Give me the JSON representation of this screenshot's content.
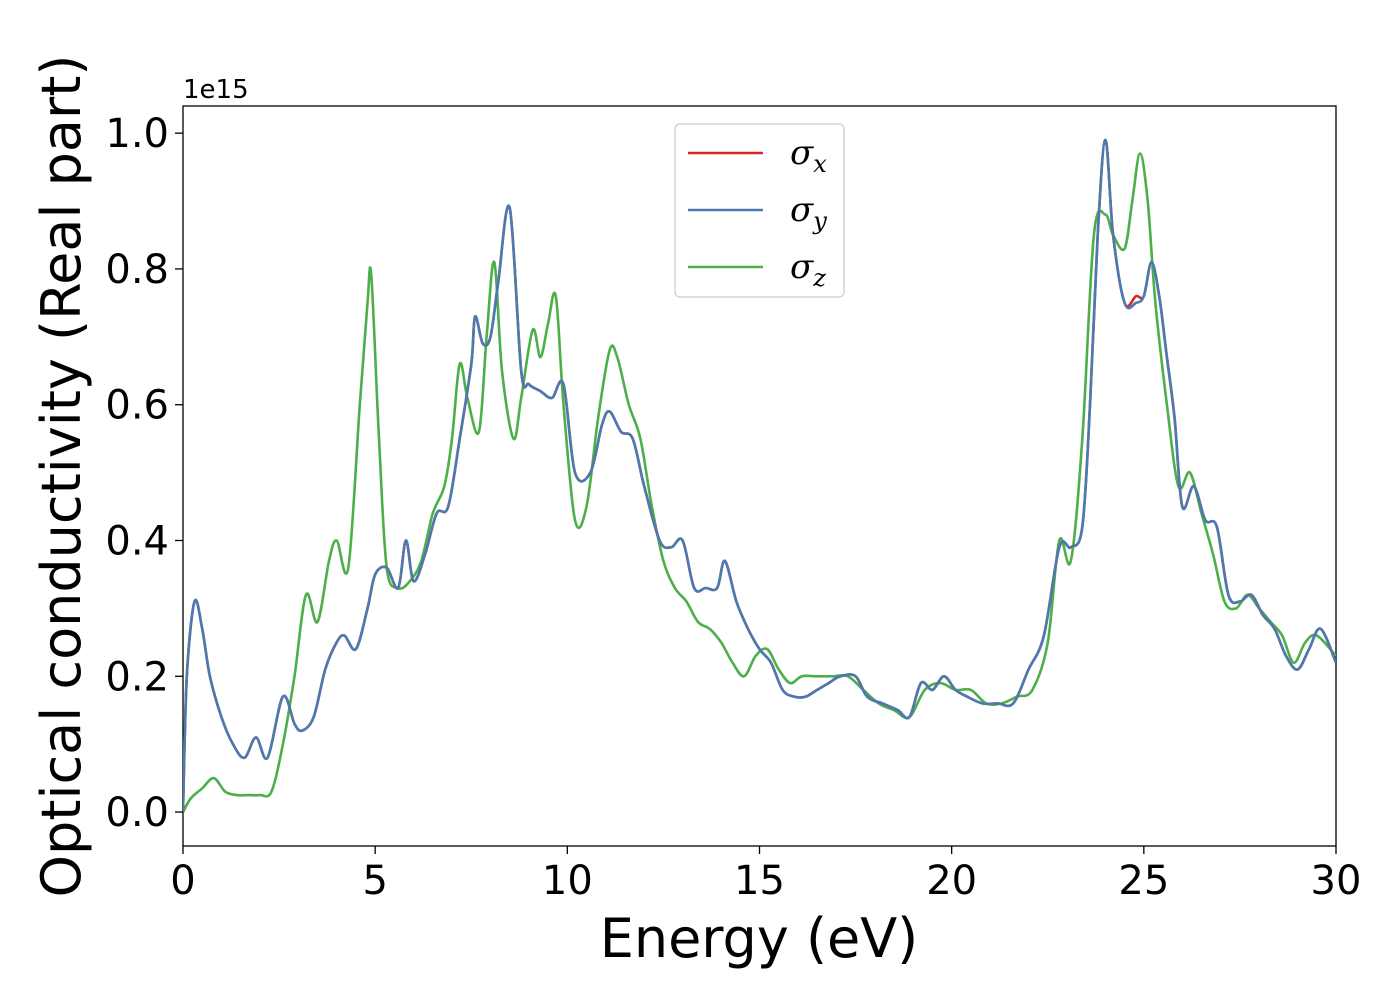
{
  "chart_data": {
    "type": "line",
    "xlabel": "Energy (eV)",
    "ylabel": "Optical conductivity (Real part)",
    "y_offset_label": "1e15",
    "xlim": [
      0,
      30
    ],
    "ylim": [
      -0.05,
      1.04
    ],
    "xticks": [
      0,
      5,
      10,
      15,
      20,
      25,
      30
    ],
    "xtick_labels": [
      "0",
      "5",
      "10",
      "15",
      "20",
      "25",
      "30"
    ],
    "yticks": [
      0.0,
      0.2,
      0.4,
      0.6,
      0.8,
      1.0
    ],
    "ytick_labels": [
      "0.0",
      "0.2",
      "0.4",
      "0.6",
      "0.8",
      "1.0"
    ],
    "grid": false,
    "legend_position": "top-center",
    "series": [
      {
        "name": "σx",
        "symbol": "σ",
        "subscript": "x",
        "color": "#d62728",
        "x": [
          0,
          0.1,
          0.3,
          0.5,
          0.7,
          1.0,
          1.3,
          1.6,
          1.9,
          2.2,
          2.6,
          2.9,
          3.1,
          3.4,
          3.7,
          4.0,
          4.2,
          4.5,
          4.8,
          5.0,
          5.3,
          5.6,
          5.8,
          6.0,
          6.3,
          6.6,
          6.9,
          7.2,
          7.5,
          7.6,
          7.8,
          8.0,
          8.2,
          8.5,
          8.8,
          9.0,
          9.3,
          9.6,
          9.9,
          10.2,
          10.6,
          10.9,
          11.1,
          11.4,
          11.7,
          12.0,
          12.4,
          12.7,
          13.0,
          13.3,
          13.6,
          13.9,
          14.1,
          14.4,
          14.7,
          15.0,
          15.3,
          15.6,
          15.9,
          16.2,
          16.5,
          16.8,
          17.1,
          17.5,
          17.8,
          18.2,
          18.6,
          18.9,
          19.2,
          19.5,
          19.8,
          20.1,
          20.4,
          20.8,
          21.2,
          21.6,
          22.0,
          22.4,
          22.8,
          23.1,
          23.4,
          23.6,
          23.8,
          24.0,
          24.2,
          24.5,
          24.8,
          25.0,
          25.2,
          25.4,
          25.6,
          25.8,
          26.0,
          26.3,
          26.6,
          26.9,
          27.2,
          27.5,
          27.8,
          28.1,
          28.4,
          28.7,
          29.0,
          29.3,
          29.6,
          30.0
        ],
        "y": [
          0.0,
          0.2,
          0.31,
          0.27,
          0.2,
          0.14,
          0.1,
          0.08,
          0.11,
          0.08,
          0.17,
          0.13,
          0.12,
          0.14,
          0.21,
          0.25,
          0.26,
          0.24,
          0.3,
          0.35,
          0.36,
          0.33,
          0.4,
          0.34,
          0.38,
          0.44,
          0.45,
          0.55,
          0.66,
          0.73,
          0.69,
          0.7,
          0.78,
          0.89,
          0.65,
          0.63,
          0.62,
          0.61,
          0.63,
          0.5,
          0.5,
          0.57,
          0.59,
          0.56,
          0.55,
          0.48,
          0.4,
          0.39,
          0.4,
          0.33,
          0.33,
          0.33,
          0.37,
          0.31,
          0.27,
          0.24,
          0.22,
          0.18,
          0.17,
          0.17,
          0.18,
          0.19,
          0.2,
          0.2,
          0.17,
          0.16,
          0.15,
          0.14,
          0.19,
          0.18,
          0.2,
          0.18,
          0.17,
          0.16,
          0.16,
          0.16,
          0.21,
          0.26,
          0.39,
          0.39,
          0.42,
          0.6,
          0.85,
          0.99,
          0.85,
          0.75,
          0.76,
          0.76,
          0.81,
          0.76,
          0.67,
          0.58,
          0.45,
          0.48,
          0.43,
          0.42,
          0.32,
          0.31,
          0.32,
          0.29,
          0.27,
          0.23,
          0.21,
          0.24,
          0.27,
          0.22
        ]
      },
      {
        "name": "σy",
        "symbol": "σ",
        "subscript": "y",
        "color": "#4a7bb0",
        "x": [
          0,
          0.1,
          0.3,
          0.5,
          0.7,
          1.0,
          1.3,
          1.6,
          1.9,
          2.2,
          2.6,
          2.9,
          3.1,
          3.4,
          3.7,
          4.0,
          4.2,
          4.5,
          4.8,
          5.0,
          5.3,
          5.6,
          5.8,
          6.0,
          6.3,
          6.6,
          6.9,
          7.2,
          7.5,
          7.6,
          7.8,
          8.0,
          8.2,
          8.5,
          8.8,
          9.0,
          9.3,
          9.6,
          9.9,
          10.2,
          10.6,
          10.9,
          11.1,
          11.4,
          11.7,
          12.0,
          12.4,
          12.7,
          13.0,
          13.3,
          13.6,
          13.9,
          14.1,
          14.4,
          14.7,
          15.0,
          15.3,
          15.6,
          15.9,
          16.2,
          16.5,
          16.8,
          17.1,
          17.5,
          17.8,
          18.2,
          18.6,
          18.9,
          19.2,
          19.5,
          19.8,
          20.1,
          20.4,
          20.8,
          21.2,
          21.6,
          22.0,
          22.4,
          22.8,
          23.1,
          23.4,
          23.6,
          23.8,
          24.0,
          24.2,
          24.5,
          24.8,
          25.0,
          25.2,
          25.4,
          25.6,
          25.8,
          26.0,
          26.3,
          26.6,
          26.9,
          27.2,
          27.5,
          27.8,
          28.1,
          28.4,
          28.7,
          29.0,
          29.3,
          29.6,
          30.0
        ],
        "y": [
          0.0,
          0.2,
          0.31,
          0.27,
          0.2,
          0.14,
          0.1,
          0.08,
          0.11,
          0.08,
          0.17,
          0.13,
          0.12,
          0.14,
          0.21,
          0.25,
          0.26,
          0.24,
          0.3,
          0.35,
          0.36,
          0.33,
          0.4,
          0.34,
          0.38,
          0.44,
          0.45,
          0.55,
          0.66,
          0.73,
          0.69,
          0.7,
          0.78,
          0.89,
          0.65,
          0.63,
          0.62,
          0.61,
          0.63,
          0.5,
          0.5,
          0.57,
          0.59,
          0.56,
          0.55,
          0.48,
          0.4,
          0.39,
          0.4,
          0.33,
          0.33,
          0.33,
          0.37,
          0.31,
          0.27,
          0.24,
          0.22,
          0.18,
          0.17,
          0.17,
          0.18,
          0.19,
          0.2,
          0.2,
          0.17,
          0.16,
          0.15,
          0.14,
          0.19,
          0.18,
          0.2,
          0.18,
          0.17,
          0.16,
          0.16,
          0.16,
          0.21,
          0.26,
          0.39,
          0.39,
          0.42,
          0.6,
          0.85,
          0.99,
          0.85,
          0.75,
          0.75,
          0.76,
          0.81,
          0.76,
          0.67,
          0.58,
          0.45,
          0.48,
          0.43,
          0.42,
          0.32,
          0.31,
          0.32,
          0.29,
          0.27,
          0.23,
          0.21,
          0.24,
          0.27,
          0.22
        ]
      },
      {
        "name": "σz",
        "symbol": "σ",
        "subscript": "z",
        "color": "#4daf4a",
        "x": [
          0,
          0.2,
          0.5,
          0.8,
          1.1,
          1.4,
          1.7,
          2.0,
          2.3,
          2.6,
          2.9,
          3.2,
          3.5,
          3.8,
          4.0,
          4.3,
          4.6,
          4.8,
          4.9,
          5.1,
          5.3,
          5.6,
          5.9,
          6.2,
          6.5,
          6.8,
          7.0,
          7.2,
          7.4,
          7.7,
          7.9,
          8.1,
          8.3,
          8.6,
          8.8,
          9.1,
          9.3,
          9.5,
          9.7,
          9.9,
          10.2,
          10.5,
          10.8,
          11.1,
          11.3,
          11.6,
          11.9,
          12.2,
          12.5,
          12.8,
          13.1,
          13.4,
          13.7,
          14.0,
          14.3,
          14.6,
          14.9,
          15.2,
          15.5,
          15.8,
          16.1,
          16.5,
          16.9,
          17.3,
          17.7,
          18.1,
          18.5,
          18.9,
          19.3,
          19.7,
          20.1,
          20.5,
          20.9,
          21.3,
          21.7,
          22.1,
          22.5,
          22.8,
          23.1,
          23.4,
          23.7,
          24.0,
          24.2,
          24.5,
          24.7,
          24.9,
          25.1,
          25.3,
          25.6,
          25.9,
          26.2,
          26.5,
          26.8,
          27.1,
          27.4,
          27.7,
          28.0,
          28.3,
          28.6,
          28.9,
          29.2,
          29.5,
          30.0
        ],
        "y": [
          0.0,
          0.02,
          0.035,
          0.05,
          0.03,
          0.025,
          0.025,
          0.025,
          0.03,
          0.1,
          0.2,
          0.32,
          0.28,
          0.37,
          0.4,
          0.36,
          0.6,
          0.75,
          0.79,
          0.55,
          0.36,
          0.33,
          0.34,
          0.37,
          0.44,
          0.48,
          0.55,
          0.66,
          0.61,
          0.56,
          0.7,
          0.81,
          0.65,
          0.55,
          0.61,
          0.71,
          0.67,
          0.72,
          0.76,
          0.6,
          0.43,
          0.45,
          0.58,
          0.68,
          0.67,
          0.6,
          0.55,
          0.45,
          0.37,
          0.33,
          0.31,
          0.28,
          0.27,
          0.25,
          0.22,
          0.2,
          0.23,
          0.24,
          0.21,
          0.19,
          0.2,
          0.2,
          0.2,
          0.2,
          0.18,
          0.16,
          0.15,
          0.14,
          0.18,
          0.19,
          0.18,
          0.18,
          0.16,
          0.16,
          0.17,
          0.18,
          0.25,
          0.4,
          0.37,
          0.55,
          0.85,
          0.88,
          0.85,
          0.83,
          0.9,
          0.97,
          0.9,
          0.75,
          0.6,
          0.48,
          0.5,
          0.44,
          0.38,
          0.31,
          0.3,
          0.32,
          0.3,
          0.28,
          0.26,
          0.22,
          0.25,
          0.26,
          0.23
        ]
      }
    ]
  }
}
